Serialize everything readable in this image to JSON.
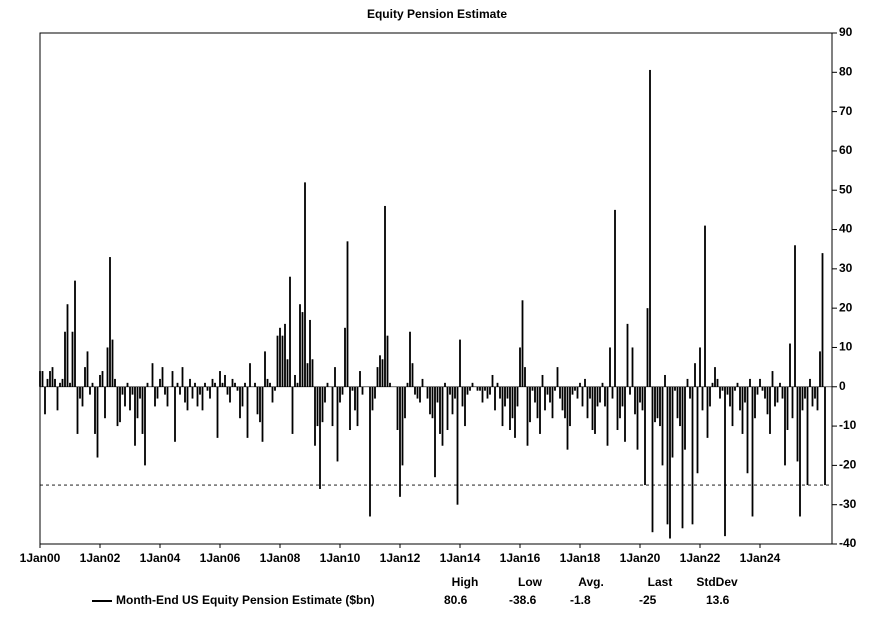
{
  "chart_data": {
    "type": "bar",
    "title": "Equity Pension Estimate",
    "x": [
      "2000-01",
      "2000-02",
      "2000-03",
      "2000-04",
      "2000-05",
      "2000-06",
      "2000-07",
      "2000-08",
      "2000-09",
      "2000-10",
      "2000-11",
      "2000-12",
      "2001-01",
      "2001-02",
      "2001-03",
      "2001-04",
      "2001-05",
      "2001-06",
      "2001-07",
      "2001-08",
      "2001-09",
      "2001-10",
      "2001-11",
      "2001-12",
      "2002-01",
      "2002-02",
      "2002-03",
      "2002-04",
      "2002-05",
      "2002-06",
      "2002-07",
      "2002-08",
      "2002-09",
      "2002-10",
      "2002-11",
      "2002-12",
      "2003-01",
      "2003-02",
      "2003-03",
      "2003-04",
      "2003-05",
      "2003-06",
      "2003-07",
      "2003-08",
      "2003-09",
      "2003-10",
      "2003-11",
      "2003-12",
      "2004-01",
      "2004-02",
      "2004-03",
      "2004-04",
      "2004-05",
      "2004-06",
      "2004-07",
      "2004-08",
      "2004-09",
      "2004-10",
      "2004-11",
      "2004-12",
      "2005-01",
      "2005-02",
      "2005-03",
      "2005-04",
      "2005-05",
      "2005-06",
      "2005-07",
      "2005-08",
      "2005-09",
      "2005-10",
      "2005-11",
      "2005-12",
      "2006-01",
      "2006-02",
      "2006-03",
      "2006-04",
      "2006-05",
      "2006-06",
      "2006-07",
      "2006-08",
      "2006-09",
      "2006-10",
      "2006-11",
      "2006-12",
      "2007-01",
      "2007-02",
      "2007-03",
      "2007-04",
      "2007-05",
      "2007-06",
      "2007-07",
      "2007-08",
      "2007-09",
      "2007-10",
      "2007-11",
      "2007-12",
      "2008-01",
      "2008-02",
      "2008-03",
      "2008-04",
      "2008-05",
      "2008-06",
      "2008-07",
      "2008-08",
      "2008-09",
      "2008-10",
      "2008-11",
      "2008-12",
      "2009-01",
      "2009-02",
      "2009-03",
      "2009-04",
      "2009-05",
      "2009-06",
      "2009-07",
      "2009-08",
      "2009-09",
      "2009-10",
      "2009-11",
      "2009-12",
      "2010-01",
      "2010-02",
      "2010-03",
      "2010-04",
      "2010-05",
      "2010-06",
      "2010-07",
      "2010-08",
      "2010-09",
      "2010-10",
      "2010-11",
      "2010-12",
      "2011-01",
      "2011-02",
      "2011-03",
      "2011-04",
      "2011-05",
      "2011-06",
      "2011-07",
      "2011-08",
      "2011-09",
      "2011-10",
      "2011-11",
      "2011-12",
      "2012-01",
      "2012-02",
      "2012-03",
      "2012-04",
      "2012-05",
      "2012-06",
      "2012-07",
      "2012-08",
      "2012-09",
      "2012-10",
      "2012-11",
      "2012-12",
      "2013-01",
      "2013-02",
      "2013-03",
      "2013-04",
      "2013-05",
      "2013-06",
      "2013-07",
      "2013-08",
      "2013-09",
      "2013-10",
      "2013-11",
      "2013-12",
      "2014-01",
      "2014-02",
      "2014-03",
      "2014-04",
      "2014-05",
      "2014-06",
      "2014-07",
      "2014-08",
      "2014-09",
      "2014-10",
      "2014-11",
      "2014-12",
      "2015-01",
      "2015-02",
      "2015-03",
      "2015-04",
      "2015-05",
      "2015-06",
      "2015-07",
      "2015-08",
      "2015-09",
      "2015-10",
      "2015-11",
      "2015-12",
      "2016-01",
      "2016-02",
      "2016-03",
      "2016-04",
      "2016-05",
      "2016-06",
      "2016-07",
      "2016-08",
      "2016-09",
      "2016-10",
      "2016-11",
      "2016-12",
      "2017-01",
      "2017-02",
      "2017-03",
      "2017-04",
      "2017-05",
      "2017-06",
      "2017-07",
      "2017-08",
      "2017-09",
      "2017-10",
      "2017-11",
      "2017-12",
      "2018-01",
      "2018-02",
      "2018-03",
      "2018-04",
      "2018-05",
      "2018-06",
      "2018-07",
      "2018-08",
      "2018-09",
      "2018-10",
      "2018-11",
      "2018-12",
      "2019-01",
      "2019-02",
      "2019-03",
      "2019-04",
      "2019-05",
      "2019-06",
      "2019-07",
      "2019-08",
      "2019-09",
      "2019-10",
      "2019-11",
      "2019-12",
      "2020-01",
      "2020-02",
      "2020-03",
      "2020-04",
      "2020-05",
      "2020-06",
      "2020-07",
      "2020-08",
      "2020-09",
      "2020-10",
      "2020-11",
      "2020-12",
      "2021-01",
      "2021-02",
      "2021-03",
      "2021-04",
      "2021-05",
      "2021-06",
      "2021-07",
      "2021-08",
      "2021-09",
      "2021-10",
      "2021-11",
      "2021-12",
      "2022-01",
      "2022-02",
      "2022-03",
      "2022-04",
      "2022-05",
      "2022-06",
      "2022-07",
      "2022-08",
      "2022-09",
      "2022-10",
      "2022-11",
      "2022-12",
      "2023-01",
      "2023-02",
      "2023-03",
      "2023-04",
      "2023-05",
      "2023-06",
      "2023-07",
      "2023-08",
      "2023-09",
      "2023-10",
      "2023-11",
      "2023-12",
      "2024-01",
      "2024-02",
      "2024-03",
      "2024-04",
      "2024-05",
      "2024-06",
      "2024-07",
      "2024-08",
      "2024-09",
      "2024-10",
      "2024-11",
      "2024-12",
      "2025-01",
      "2025-02",
      "2025-03",
      "2025-04",
      "2025-05",
      "2025-06",
      "2025-07",
      "2025-08",
      "2025-09",
      "2025-10",
      "2025-11",
      "2025-12",
      "2026-01",
      "2026-02",
      "2026-03"
    ],
    "series": [
      {
        "name": "Month-End US Equity Pension Estimate ($bn)",
        "color": "#000000",
        "values": [
          4,
          4,
          -7,
          2,
          4,
          5,
          2,
          -6,
          1,
          2,
          14,
          21,
          1,
          14,
          27,
          -12,
          -3,
          -5,
          5,
          9,
          -2,
          1,
          -12,
          -18,
          3,
          4,
          -8,
          10,
          33,
          12,
          2,
          -10,
          -9,
          -2,
          -5,
          1,
          -6,
          -2,
          -15,
          -8,
          -3,
          -12,
          -20,
          1,
          0,
          6,
          -5,
          -3,
          2,
          5,
          -2,
          -5,
          0,
          4,
          -14,
          1,
          -2,
          5,
          -4,
          -6,
          2,
          -3,
          1,
          -5,
          -2,
          -6,
          1,
          -1,
          -3,
          2,
          1,
          -13,
          4,
          1,
          3,
          -2,
          -4,
          2,
          1,
          -1,
          -8,
          -5,
          1,
          -13,
          6,
          0,
          1,
          -7,
          -9,
          -14,
          9,
          2,
          1,
          -4,
          -1,
          13,
          15,
          13,
          16,
          7,
          28,
          -12,
          3,
          1,
          21,
          19,
          52,
          6,
          17,
          7,
          -15,
          -10,
          -26,
          -9,
          -4,
          1,
          0,
          -10,
          5,
          -19,
          -4,
          -2,
          15,
          37,
          -11,
          -1,
          -6,
          -10,
          4,
          -2,
          0,
          0,
          -33,
          -6,
          -3,
          5,
          8,
          7,
          46,
          13,
          1,
          0,
          0,
          -11,
          -28,
          -20,
          -8,
          1,
          14,
          6,
          -2,
          -3,
          -4,
          2,
          0,
          -3,
          -7,
          -8,
          -23,
          -4,
          -12,
          -15,
          1,
          -11,
          -2,
          -7,
          -3,
          -30,
          12,
          -5,
          -10,
          -2,
          -1,
          1,
          0,
          -1,
          -1,
          -4,
          -1,
          -3,
          -2,
          3,
          -6,
          1,
          -3,
          -10,
          -5,
          -3,
          -11,
          -8,
          -13,
          -5,
          10,
          22,
          5,
          -15,
          -9,
          -1,
          -4,
          -8,
          -12,
          3,
          -6,
          -2,
          -4,
          -8,
          -1,
          5,
          -3,
          -6,
          -8,
          -16,
          -10,
          -2,
          -1,
          -3,
          1,
          -5,
          2,
          -8,
          -3,
          -11,
          -12,
          -5,
          -4,
          1,
          -5,
          -15,
          10,
          -3,
          45,
          -11,
          -8,
          -5,
          -14,
          16,
          -2,
          10,
          -7,
          -16,
          -4,
          -6,
          -25,
          20,
          80.6,
          -37,
          -9,
          -8,
          -10,
          -20,
          3,
          -35,
          -38.6,
          -18,
          -1,
          -8,
          -10,
          -36,
          -16,
          2,
          -3,
          -35,
          6,
          -22,
          10,
          -6,
          41,
          -13,
          -5,
          1,
          5,
          2,
          -3,
          -1,
          -38,
          -2,
          -5,
          -10,
          -1,
          1,
          -6,
          -12,
          -4,
          -22,
          2,
          -33,
          -8,
          -2,
          2,
          -1,
          -3,
          -7,
          -12,
          4,
          -5,
          -4,
          1,
          -3,
          -20,
          -11,
          11,
          -8,
          36,
          -19,
          -33,
          -6,
          -3,
          -25,
          2,
          -5,
          -3,
          -6,
          9,
          34,
          -25
        ]
      }
    ],
    "xticks": [
      {
        "value": "2000-01",
        "label": "1Jan00"
      },
      {
        "value": "2002-01",
        "label": "1Jan02"
      },
      {
        "value": "2004-01",
        "label": "1Jan04"
      },
      {
        "value": "2006-01",
        "label": "1Jan06"
      },
      {
        "value": "2008-01",
        "label": "1Jan08"
      },
      {
        "value": "2010-01",
        "label": "1Jan10"
      },
      {
        "value": "2012-01",
        "label": "1Jan12"
      },
      {
        "value": "2014-01",
        "label": "1Jan14"
      },
      {
        "value": "2016-01",
        "label": "1Jan16"
      },
      {
        "value": "2018-01",
        "label": "1Jan18"
      },
      {
        "value": "2020-01",
        "label": "1Jan20"
      },
      {
        "value": "2022-01",
        "label": "1Jan22"
      },
      {
        "value": "2024-01",
        "label": "1Jan24"
      }
    ],
    "ylim": [
      -40,
      90
    ],
    "yticks": [
      -40,
      -30,
      -20,
      -10,
      0,
      10,
      20,
      30,
      40,
      50,
      60,
      70,
      80,
      90
    ],
    "grid": false,
    "stats": [
      {
        "label": "High",
        "value": 80.6
      },
      {
        "label": "Low",
        "value": -38.6
      },
      {
        "label": "Avg.",
        "value": -1.8
      },
      {
        "label": "Last",
        "value": -25
      },
      {
        "label": "StdDev",
        "value": 13.6
      }
    ]
  }
}
